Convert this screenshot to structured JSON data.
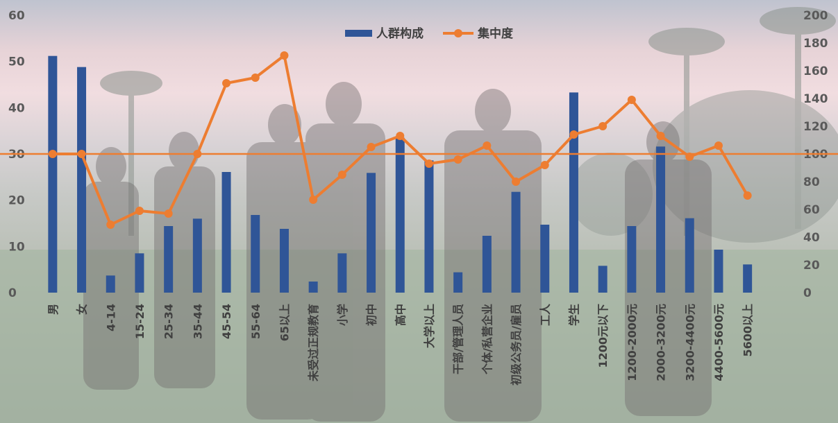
{
  "chart_data": {
    "type": "bar+line",
    "categories": [
      "男",
      "女",
      "4-14",
      "15-24",
      "25-34",
      "35-44",
      "45-54",
      "55-64",
      "65以上",
      "未受过正规教育",
      "小学",
      "初中",
      "高中",
      "大学以上",
      "干部/管理人员",
      "个体/私营企业",
      "初级公务员/雇员",
      "工人",
      "学生",
      "1200元以下",
      "1200-2000元",
      "2000-3200元",
      "3200-4400元",
      "4400-5600元",
      "5600以上"
    ],
    "series": [
      {
        "name": "人群构成",
        "type": "bar",
        "axis": "left",
        "color": "#2F5597",
        "values": [
          51.2,
          48.8,
          3.7,
          8.5,
          14.4,
          16.0,
          26.1,
          16.8,
          13.8,
          2.4,
          8.5,
          25.9,
          33.5,
          28.6,
          4.4,
          12.3,
          21.8,
          14.7,
          43.3,
          5.8,
          14.4,
          31.6,
          16.1,
          9.3,
          6.1
        ]
      },
      {
        "name": "集中度",
        "type": "line",
        "axis": "right",
        "color": "#ED7D31",
        "values": [
          100,
          100,
          49,
          59,
          57,
          100,
          151,
          155,
          171,
          67,
          85,
          105,
          113,
          93,
          96,
          106,
          80,
          92,
          114,
          120,
          139,
          113,
          98,
          106,
          70
        ]
      }
    ],
    "y_left": {
      "min": 0,
      "max": 60,
      "ticks": [
        0,
        10,
        20,
        30,
        40,
        50,
        60
      ]
    },
    "y_right": {
      "min": 0,
      "max": 200,
      "ticks": [
        0,
        20,
        40,
        60,
        80,
        100,
        120,
        140,
        160,
        180,
        200
      ]
    },
    "reference_line": {
      "axis": "right",
      "value": 100,
      "color": "#ED7D31"
    },
    "legend": {
      "placement": "top-center",
      "entries": [
        "人群构成",
        "集中度"
      ]
    }
  }
}
